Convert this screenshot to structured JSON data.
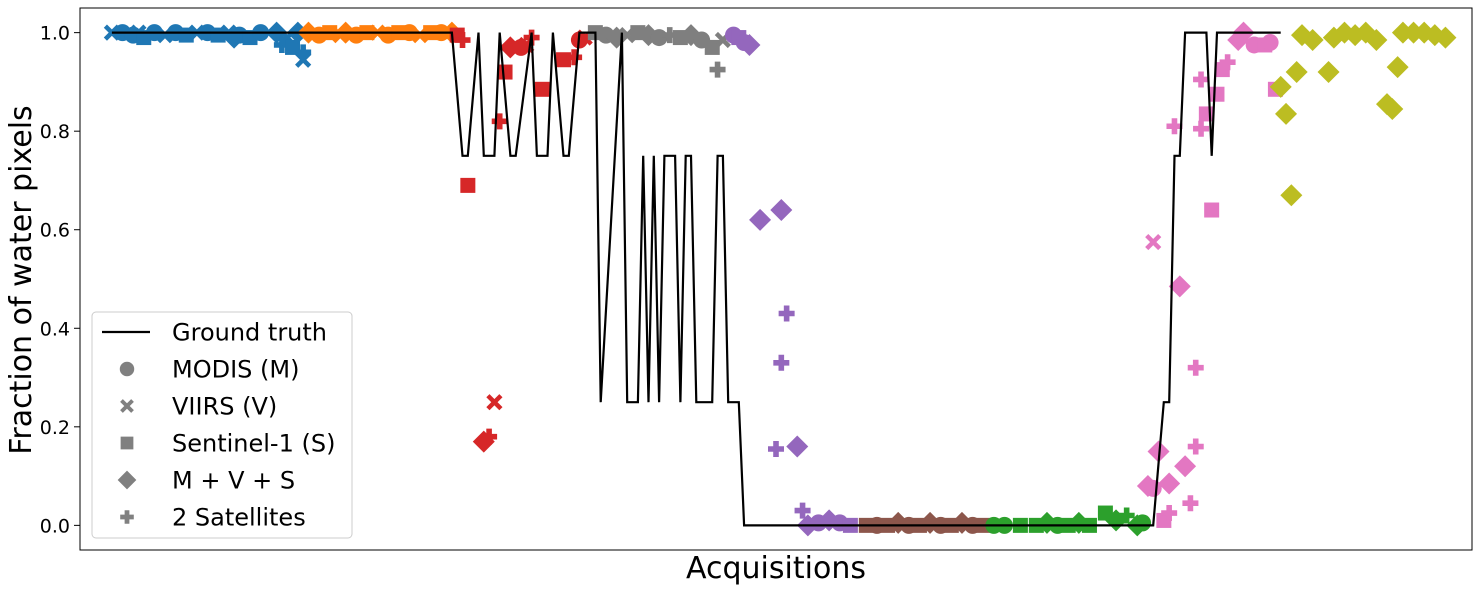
{
  "chart_data": {
    "type": "scatter",
    "title": "",
    "xlabel": "Acquisitions",
    "ylabel": "Fraction of water pixels",
    "xlim": [
      -6,
      256
    ],
    "ylim": [
      -0.05,
      1.05
    ],
    "yticks": [
      0.0,
      0.2,
      0.4,
      0.6,
      0.8,
      1.0
    ],
    "ytick_labels": [
      "0.0",
      "0.2",
      "0.4",
      "0.6",
      "0.8",
      "1.0"
    ],
    "grid": false,
    "legend_position": "lower-left",
    "legend": [
      {
        "label": "Ground truth",
        "marker": "line"
      },
      {
        "label": "MODIS (M)",
        "marker": "circle"
      },
      {
        "label": "VIIRS (V)",
        "marker": "x"
      },
      {
        "label": "Sentinel-1 (S)",
        "marker": "square"
      },
      {
        "label": "M + V + S",
        "marker": "diamond"
      },
      {
        "label": "2 Satellites",
        "marker": "plus"
      }
    ],
    "legend_marker_color": "#808080",
    "ground_truth": {
      "color": "#000000",
      "x": [
        0,
        64,
        66,
        67,
        69,
        70,
        72,
        73,
        75,
        76,
        79,
        80,
        82,
        83,
        85,
        86,
        88,
        89,
        91,
        92,
        96,
        97,
        99,
        100,
        101,
        102,
        103,
        104,
        105,
        106,
        107,
        108,
        109,
        110,
        111,
        113,
        114,
        115,
        116,
        117,
        118,
        119,
        121,
        122,
        123,
        124,
        125,
        126,
        127,
        128,
        129,
        130,
        131,
        132,
        133,
        196,
        198,
        199,
        200,
        201,
        202,
        203,
        206,
        207,
        208,
        209,
        220
      ],
      "y": [
        1.0,
        1.0,
        0.75,
        0.75,
        1.0,
        0.75,
        0.75,
        1.0,
        0.75,
        0.75,
        1.0,
        0.75,
        0.75,
        1.0,
        0.75,
        0.75,
        1.0,
        1.0,
        1.0,
        0.25,
        1.0,
        0.25,
        0.25,
        0.75,
        0.25,
        0.75,
        0.25,
        0.75,
        0.75,
        0.75,
        0.25,
        0.75,
        0.75,
        0.25,
        0.25,
        0.25,
        0.75,
        0.75,
        0.25,
        0.25,
        0.25,
        0.0,
        0.0,
        0.0,
        0.0,
        0.0,
        0.0,
        0.0,
        0.0,
        0.0,
        0.0,
        0.0,
        0.0,
        0.0,
        0.0,
        0.0,
        0.25,
        0.25,
        0.75,
        0.75,
        1.0,
        1.0,
        1.0,
        0.75,
        1.0,
        1.0,
        1.0
      ]
    },
    "series": [
      {
        "color": "#1f77b4",
        "points": [
          {
            "x": 0,
            "y": 1.0,
            "m": "x"
          },
          {
            "x": 2,
            "y": 1.0,
            "m": "circle"
          },
          {
            "x": 4,
            "y": 0.995,
            "m": "circle"
          },
          {
            "x": 5,
            "y": 1.0,
            "m": "x"
          },
          {
            "x": 6,
            "y": 0.99,
            "m": "square"
          },
          {
            "x": 8,
            "y": 1.0,
            "m": "circle"
          },
          {
            "x": 10,
            "y": 0.995,
            "m": "x"
          },
          {
            "x": 12,
            "y": 1.0,
            "m": "circle"
          },
          {
            "x": 14,
            "y": 0.995,
            "m": "square"
          },
          {
            "x": 16,
            "y": 1.0,
            "m": "x"
          },
          {
            "x": 18,
            "y": 1.0,
            "m": "circle"
          },
          {
            "x": 20,
            "y": 0.995,
            "m": "square"
          },
          {
            "x": 22,
            "y": 1.0,
            "m": "x"
          },
          {
            "x": 23,
            "y": 0.99,
            "m": "diamond"
          },
          {
            "x": 24,
            "y": 0.995,
            "m": "circle"
          },
          {
            "x": 26,
            "y": 0.99,
            "m": "square"
          },
          {
            "x": 28,
            "y": 1.0,
            "m": "circle"
          },
          {
            "x": 31,
            "y": 1.0,
            "m": "diamond"
          },
          {
            "x": 32,
            "y": 0.975,
            "m": "plus"
          },
          {
            "x": 33,
            "y": 0.99,
            "m": "x"
          },
          {
            "x": 34,
            "y": 0.97,
            "m": "square"
          },
          {
            "x": 35,
            "y": 1.0,
            "m": "diamond"
          },
          {
            "x": 36,
            "y": 0.96,
            "m": "plus"
          },
          {
            "x": 36,
            "y": 0.945,
            "m": "x"
          }
        ]
      },
      {
        "color": "#ff7f0e",
        "points": [
          {
            "x": 37,
            "y": 1.0,
            "m": "diamond"
          },
          {
            "x": 39,
            "y": 0.995,
            "m": "circle"
          },
          {
            "x": 41,
            "y": 1.0,
            "m": "square"
          },
          {
            "x": 43,
            "y": 0.995,
            "m": "x"
          },
          {
            "x": 44,
            "y": 1.0,
            "m": "diamond"
          },
          {
            "x": 46,
            "y": 0.995,
            "m": "circle"
          },
          {
            "x": 48,
            "y": 1.0,
            "m": "square"
          },
          {
            "x": 50,
            "y": 1.0,
            "m": "x"
          },
          {
            "x": 52,
            "y": 0.995,
            "m": "circle"
          },
          {
            "x": 54,
            "y": 1.0,
            "m": "square"
          },
          {
            "x": 56,
            "y": 1.0,
            "m": "circle"
          },
          {
            "x": 58,
            "y": 0.995,
            "m": "x"
          },
          {
            "x": 60,
            "y": 1.0,
            "m": "square"
          },
          {
            "x": 62,
            "y": 1.0,
            "m": "circle"
          },
          {
            "x": 64,
            "y": 1.0,
            "m": "diamond"
          }
        ]
      },
      {
        "color": "#d62728",
        "points": [
          {
            "x": 65,
            "y": 0.995,
            "m": "square"
          },
          {
            "x": 66,
            "y": 0.985,
            "m": "plus"
          },
          {
            "x": 67,
            "y": 0.69,
            "m": "square"
          },
          {
            "x": 70,
            "y": 0.17,
            "m": "diamond"
          },
          {
            "x": 71,
            "y": 0.18,
            "m": "plus"
          },
          {
            "x": 72,
            "y": 0.25,
            "m": "x"
          },
          {
            "x": 73,
            "y": 0.82,
            "m": "plus"
          },
          {
            "x": 74,
            "y": 0.92,
            "m": "square"
          },
          {
            "x": 75,
            "y": 0.97,
            "m": "diamond"
          },
          {
            "x": 77,
            "y": 0.97,
            "m": "circle"
          },
          {
            "x": 78,
            "y": 0.975,
            "m": "x"
          },
          {
            "x": 79,
            "y": 0.99,
            "m": "plus"
          },
          {
            "x": 81,
            "y": 0.885,
            "m": "square"
          },
          {
            "x": 85,
            "y": 0.945,
            "m": "square"
          },
          {
            "x": 87,
            "y": 0.95,
            "m": "plus"
          },
          {
            "x": 88,
            "y": 0.985,
            "m": "circle"
          },
          {
            "x": 89,
            "y": 0.99,
            "m": "x"
          }
        ]
      },
      {
        "color": "#7f7f7f",
        "points": [
          {
            "x": 91,
            "y": 1.0,
            "m": "square"
          },
          {
            "x": 93,
            "y": 0.995,
            "m": "circle"
          },
          {
            "x": 95,
            "y": 0.99,
            "m": "diamond"
          },
          {
            "x": 97,
            "y": 0.995,
            "m": "x"
          },
          {
            "x": 99,
            "y": 1.0,
            "m": "square"
          },
          {
            "x": 101,
            "y": 0.995,
            "m": "diamond"
          },
          {
            "x": 103,
            "y": 0.99,
            "m": "circle"
          },
          {
            "x": 105,
            "y": 0.995,
            "m": "plus"
          },
          {
            "x": 107,
            "y": 0.99,
            "m": "square"
          },
          {
            "x": 109,
            "y": 0.995,
            "m": "diamond"
          },
          {
            "x": 111,
            "y": 0.985,
            "m": "circle"
          },
          {
            "x": 113,
            "y": 0.97,
            "m": "square"
          },
          {
            "x": 114,
            "y": 0.925,
            "m": "plus"
          },
          {
            "x": 115,
            "y": 0.985,
            "m": "x"
          }
        ]
      },
      {
        "color": "#9467bd",
        "points": [
          {
            "x": 117,
            "y": 0.995,
            "m": "circle"
          },
          {
            "x": 118,
            "y": 0.99,
            "m": "square"
          },
          {
            "x": 119,
            "y": 0.98,
            "m": "circle"
          },
          {
            "x": 120,
            "y": 0.975,
            "m": "diamond"
          },
          {
            "x": 122,
            "y": 0.62,
            "m": "diamond"
          },
          {
            "x": 125,
            "y": 0.155,
            "m": "plus"
          },
          {
            "x": 126,
            "y": 0.33,
            "m": "plus"
          },
          {
            "x": 126,
            "y": 0.64,
            "m": "diamond"
          },
          {
            "x": 127,
            "y": 0.43,
            "m": "plus"
          },
          {
            "x": 129,
            "y": 0.16,
            "m": "diamond"
          },
          {
            "x": 130,
            "y": 0.03,
            "m": "plus"
          },
          {
            "x": 131,
            "y": 0.0,
            "m": "diamond"
          },
          {
            "x": 133,
            "y": 0.005,
            "m": "circle"
          },
          {
            "x": 135,
            "y": 0.01,
            "m": "diamond"
          },
          {
            "x": 137,
            "y": 0.005,
            "m": "circle"
          },
          {
            "x": 139,
            "y": 0.0,
            "m": "square"
          }
        ]
      },
      {
        "color": "#8c564b",
        "points": [
          {
            "x": 142,
            "y": 0.0,
            "m": "square"
          },
          {
            "x": 144,
            "y": 0.0,
            "m": "circle"
          },
          {
            "x": 146,
            "y": 0.0,
            "m": "square"
          },
          {
            "x": 148,
            "y": 0.005,
            "m": "diamond"
          },
          {
            "x": 150,
            "y": 0.0,
            "m": "circle"
          },
          {
            "x": 152,
            "y": 0.0,
            "m": "square"
          },
          {
            "x": 154,
            "y": 0.005,
            "m": "diamond"
          },
          {
            "x": 156,
            "y": 0.0,
            "m": "circle"
          },
          {
            "x": 158,
            "y": 0.0,
            "m": "square"
          },
          {
            "x": 160,
            "y": 0.005,
            "m": "diamond"
          },
          {
            "x": 162,
            "y": 0.0,
            "m": "circle"
          },
          {
            "x": 164,
            "y": 0.0,
            "m": "square"
          }
        ]
      },
      {
        "color": "#2ca02c",
        "points": [
          {
            "x": 166,
            "y": 0.0,
            "m": "circle"
          },
          {
            "x": 168,
            "y": 0.0,
            "m": "circle"
          },
          {
            "x": 171,
            "y": 0.0,
            "m": "square"
          },
          {
            "x": 174,
            "y": 0.0,
            "m": "square"
          },
          {
            "x": 176,
            "y": 0.005,
            "m": "diamond"
          },
          {
            "x": 178,
            "y": 0.0,
            "m": "circle"
          },
          {
            "x": 180,
            "y": 0.0,
            "m": "square"
          },
          {
            "x": 182,
            "y": 0.005,
            "m": "diamond"
          },
          {
            "x": 184,
            "y": 0.0,
            "m": "square"
          },
          {
            "x": 187,
            "y": 0.025,
            "m": "square"
          },
          {
            "x": 189,
            "y": 0.01,
            "m": "diamond"
          },
          {
            "x": 191,
            "y": 0.02,
            "m": "plus"
          },
          {
            "x": 193,
            "y": 0.0,
            "m": "diamond"
          },
          {
            "x": 194,
            "y": 0.005,
            "m": "circle"
          }
        ]
      },
      {
        "color": "#e377c2",
        "points": [
          {
            "x": 195,
            "y": 0.08,
            "m": "diamond"
          },
          {
            "x": 196,
            "y": 0.575,
            "m": "x"
          },
          {
            "x": 197,
            "y": 0.15,
            "m": "diamond"
          },
          {
            "x": 196,
            "y": 0.075,
            "m": "circle"
          },
          {
            "x": 198,
            "y": 0.01,
            "m": "square"
          },
          {
            "x": 199,
            "y": 0.085,
            "m": "diamond"
          },
          {
            "x": 200,
            "y": 0.81,
            "m": "plus"
          },
          {
            "x": 201,
            "y": 0.485,
            "m": "diamond"
          },
          {
            "x": 202,
            "y": 0.12,
            "m": "diamond"
          },
          {
            "x": 199,
            "y": 0.025,
            "m": "plus"
          },
          {
            "x": 203,
            "y": 0.045,
            "m": "plus"
          },
          {
            "x": 204,
            "y": 0.16,
            "m": "plus"
          },
          {
            "x": 204,
            "y": 0.32,
            "m": "plus"
          },
          {
            "x": 205,
            "y": 0.805,
            "m": "plus"
          },
          {
            "x": 205,
            "y": 0.905,
            "m": "plus"
          },
          {
            "x": 206,
            "y": 0.835,
            "m": "square"
          },
          {
            "x": 207,
            "y": 0.64,
            "m": "square"
          },
          {
            "x": 208,
            "y": 0.875,
            "m": "square"
          },
          {
            "x": 209,
            "y": 0.925,
            "m": "square"
          },
          {
            "x": 210,
            "y": 0.94,
            "m": "plus"
          },
          {
            "x": 212,
            "y": 0.985,
            "m": "diamond"
          },
          {
            "x": 213,
            "y": 1.0,
            "m": "diamond"
          },
          {
            "x": 215,
            "y": 0.975,
            "m": "circle"
          },
          {
            "x": 217,
            "y": 0.975,
            "m": "square"
          },
          {
            "x": 218,
            "y": 0.98,
            "m": "circle"
          },
          {
            "x": 219,
            "y": 0.885,
            "m": "square"
          }
        ]
      },
      {
        "color": "#bcbd22",
        "points": [
          {
            "x": 220,
            "y": 0.89,
            "m": "diamond"
          },
          {
            "x": 221,
            "y": 0.835,
            "m": "diamond"
          },
          {
            "x": 222,
            "y": 0.67,
            "m": "diamond"
          },
          {
            "x": 223,
            "y": 0.92,
            "m": "diamond"
          },
          {
            "x": 224,
            "y": 0.995,
            "m": "diamond"
          },
          {
            "x": 226,
            "y": 0.985,
            "m": "diamond"
          },
          {
            "x": 229,
            "y": 0.92,
            "m": "diamond"
          },
          {
            "x": 230,
            "y": 0.99,
            "m": "diamond"
          },
          {
            "x": 232,
            "y": 1.0,
            "m": "diamond"
          },
          {
            "x": 234,
            "y": 0.995,
            "m": "diamond"
          },
          {
            "x": 236,
            "y": 1.0,
            "m": "diamond"
          },
          {
            "x": 238,
            "y": 0.985,
            "m": "diamond"
          },
          {
            "x": 240,
            "y": 0.855,
            "m": "diamond"
          },
          {
            "x": 241,
            "y": 0.845,
            "m": "diamond"
          },
          {
            "x": 242,
            "y": 0.93,
            "m": "diamond"
          },
          {
            "x": 243,
            "y": 1.0,
            "m": "diamond"
          },
          {
            "x": 245,
            "y": 1.0,
            "m": "diamond"
          },
          {
            "x": 247,
            "y": 1.0,
            "m": "diamond"
          },
          {
            "x": 249,
            "y": 0.995,
            "m": "diamond"
          },
          {
            "x": 251,
            "y": 0.99,
            "m": "diamond"
          }
        ]
      }
    ]
  }
}
